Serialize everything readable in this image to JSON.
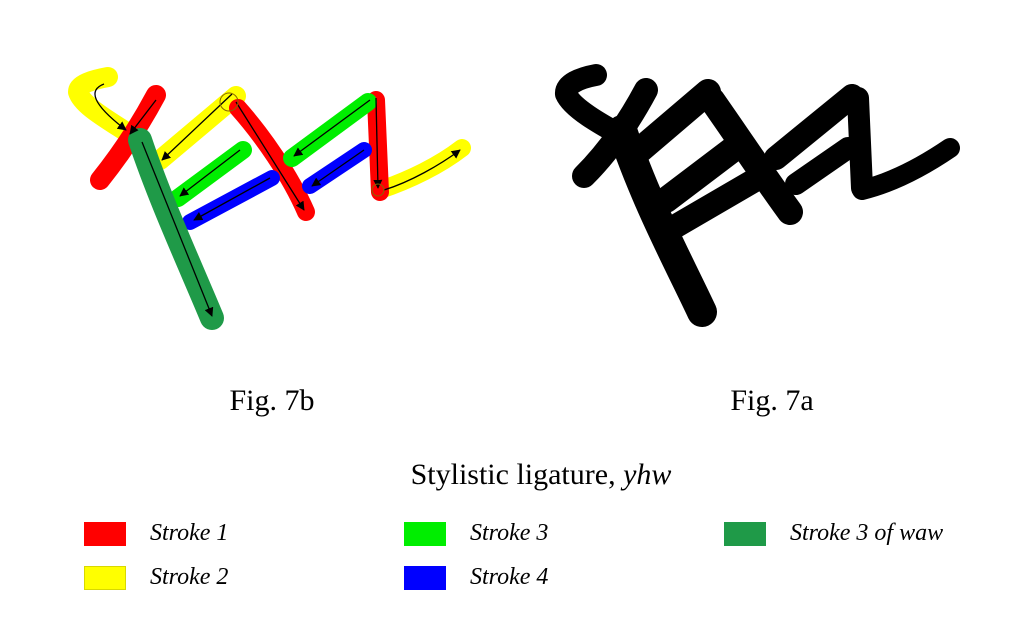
{
  "captions": {
    "fig_b": "Fig. 7b",
    "fig_a": "Fig. 7a"
  },
  "title": {
    "text": "Stylistic ligature, ",
    "italic": "yhw"
  },
  "legend": [
    {
      "label": "Stroke 1",
      "color": "#ff0000"
    },
    {
      "label": "Stroke 2",
      "color": "#ffff00"
    },
    {
      "label": "Stroke 3",
      "color": "#00ee00"
    },
    {
      "label": "Stroke 4",
      "color": "#0000ff"
    },
    {
      "label": "Stroke 3 of waw",
      "color": "#1f9a48"
    }
  ]
}
